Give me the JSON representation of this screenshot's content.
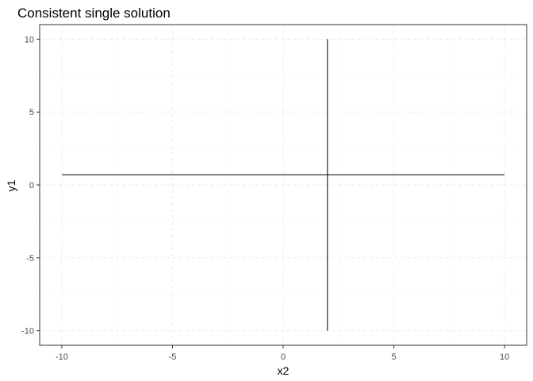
{
  "chart_data": {
    "type": "line",
    "title": "Consistent single solution",
    "xlabel": "x2",
    "ylabel": "y1",
    "xlim": [
      -11,
      11
    ],
    "ylim": [
      -11,
      11
    ],
    "x_ticks": [
      -10,
      -5,
      0,
      5,
      10
    ],
    "y_ticks": [
      -10,
      -5,
      0,
      5,
      10
    ],
    "x_tick_labels": [
      "-10",
      "-5",
      "0",
      "5",
      "10"
    ],
    "y_tick_labels": [
      "-10",
      "-5",
      "0",
      "5",
      "10"
    ],
    "grid": true,
    "series": [
      {
        "x": [
          -10,
          10
        ],
        "y": [
          0.7,
          0.7
        ],
        "color": "#000000"
      },
      {
        "x": [
          2,
          2
        ],
        "y": [
          -10,
          10
        ],
        "color": "#000000"
      }
    ]
  }
}
